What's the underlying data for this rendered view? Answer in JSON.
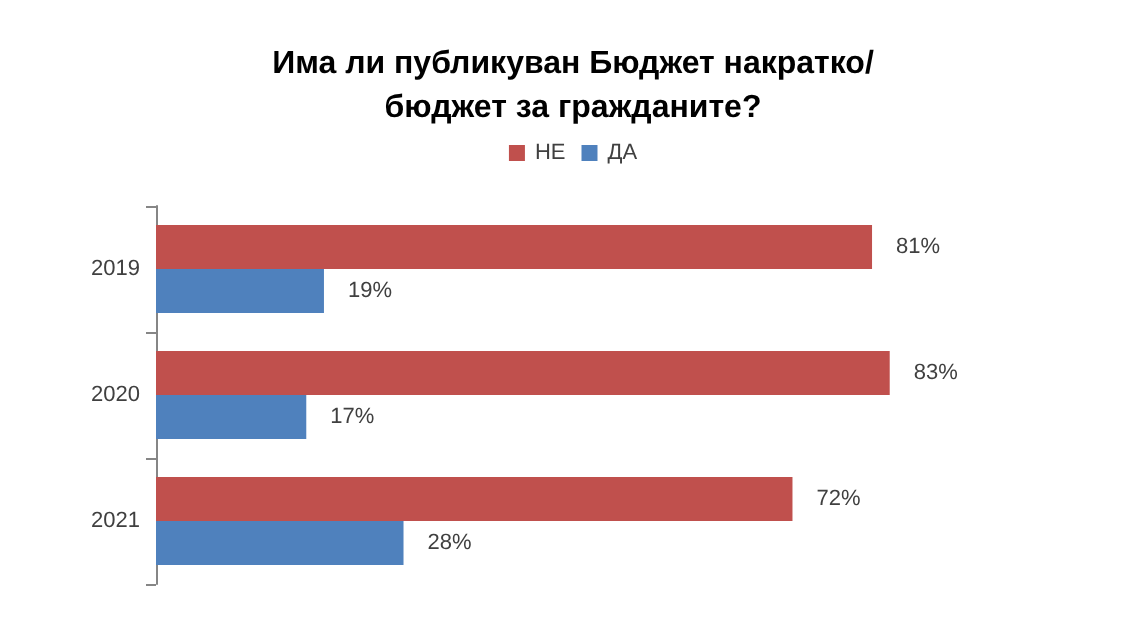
{
  "chart_data": {
    "type": "bar",
    "orientation": "horizontal",
    "title": "Има ли публикуван Бюджет накратко/бюджет за гражданите?",
    "categories": [
      "2019",
      "2020",
      "2021"
    ],
    "series": [
      {
        "name": "НЕ",
        "color": "#c0504d",
        "values": [
          81,
          83,
          72
        ],
        "value_labels": [
          "81%",
          "83%",
          "72%"
        ]
      },
      {
        "name": "ДА",
        "color": "#4f81bd",
        "values": [
          19,
          17,
          28
        ],
        "value_labels": [
          "19%",
          "17%",
          "28%"
        ]
      }
    ],
    "legend": "top",
    "grid": false
  }
}
